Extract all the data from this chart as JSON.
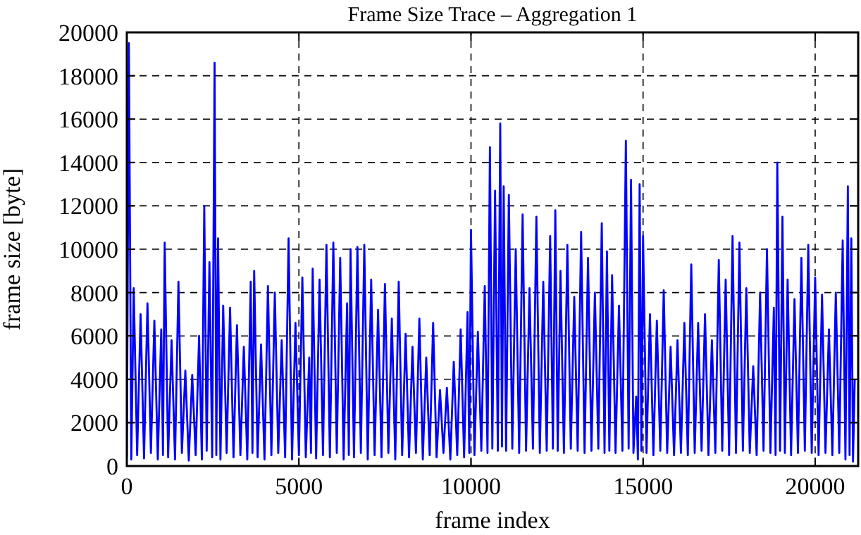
{
  "chart_data": {
    "type": "line",
    "title": "Frame Size Trace – Aggregation 1",
    "xlabel": "frame index",
    "ylabel": "frame size [byte]",
    "xlim": [
      0,
      21250
    ],
    "xticks": [
      0,
      5000,
      10000,
      15000,
      20000
    ],
    "ylim": [
      0,
      20000
    ],
    "yticks": [
      0,
      2000,
      4000,
      6000,
      8000,
      10000,
      12000,
      14000,
      16000,
      18000,
      20000
    ],
    "grid": true,
    "x": [
      0,
      60,
      130,
      200,
      300,
      400,
      500,
      600,
      700,
      800,
      900,
      1000,
      1050,
      1100,
      1200,
      1300,
      1400,
      1500,
      1600,
      1700,
      1800,
      1900,
      2000,
      2100,
      2180,
      2250,
      2320,
      2400,
      2480,
      2550,
      2600,
      2650,
      2720,
      2800,
      2900,
      3000,
      3100,
      3200,
      3300,
      3400,
      3500,
      3600,
      3650,
      3700,
      3800,
      3900,
      4000,
      4100,
      4200,
      4300,
      4400,
      4500,
      4600,
      4700,
      4800,
      4900,
      5000,
      5100,
      5200,
      5300,
      5350,
      5400,
      5500,
      5600,
      5700,
      5800,
      5900,
      6000,
      6100,
      6200,
      6300,
      6400,
      6450,
      6500,
      6600,
      6700,
      6800,
      6900,
      7000,
      7100,
      7200,
      7300,
      7400,
      7500,
      7600,
      7700,
      7800,
      7900,
      8000,
      8100,
      8200,
      8300,
      8400,
      8500,
      8600,
      8700,
      8800,
      8900,
      9000,
      9100,
      9200,
      9300,
      9400,
      9500,
      9600,
      9700,
      9800,
      9900,
      9950,
      10000,
      10100,
      10200,
      10300,
      10400,
      10480,
      10550,
      10620,
      10700,
      10780,
      10850,
      10900,
      10950,
      11020,
      11100,
      11200,
      11300,
      11400,
      11500,
      11600,
      11700,
      11800,
      11900,
      12000,
      12100,
      12200,
      12300,
      12380,
      12450,
      12520,
      12600,
      12700,
      12800,
      12900,
      13000,
      13100,
      13200,
      13300,
      13400,
      13500,
      13600,
      13700,
      13800,
      13880,
      13950,
      14020,
      14100,
      14200,
      14300,
      14400,
      14500,
      14580,
      14650,
      14720,
      14800,
      14850,
      14900,
      14950,
      15000,
      15100,
      15200,
      15300,
      15400,
      15500,
      15600,
      15700,
      15800,
      15900,
      16000,
      16100,
      16200,
      16300,
      16400,
      16500,
      16600,
      16700,
      16800,
      16900,
      17000,
      17100,
      17200,
      17300,
      17400,
      17500,
      17600,
      17700,
      17800,
      17900,
      18000,
      18100,
      18200,
      18300,
      18400,
      18500,
      18600,
      18700,
      18800,
      18850,
      18900,
      18980,
      19050,
      19120,
      19200,
      19300,
      19400,
      19500,
      19600,
      19700,
      19800,
      19900,
      20000,
      20100,
      20200,
      20300,
      20400,
      20500,
      20600,
      20700,
      20800,
      20880,
      20950,
      21000,
      21050,
      21100,
      21150
    ],
    "series": [
      {
        "color": "#0000ff",
        "values": [
          400,
          19500,
          300,
          8200,
          500,
          7000,
          350,
          7500,
          600,
          6700,
          300,
          6300,
          500,
          10300,
          400,
          5800,
          300,
          8500,
          600,
          4400,
          250,
          4200,
          500,
          6000,
          300,
          12000,
          700,
          9400,
          400,
          18600,
          500,
          10500,
          300,
          7400,
          600,
          7300,
          400,
          6500,
          500,
          5500,
          300,
          8500,
          600,
          9000,
          400,
          5600,
          300,
          8300,
          500,
          8000,
          600,
          5800,
          400,
          10500,
          300,
          6600,
          500,
          8700,
          400,
          5000,
          600,
          9100,
          350,
          8600,
          500,
          10200,
          400,
          10300,
          600,
          9600,
          300,
          7500,
          500,
          10000,
          400,
          10100,
          600,
          10200,
          300,
          8600,
          500,
          7200,
          400,
          8400,
          600,
          6800,
          300,
          8500,
          500,
          6100,
          400,
          5500,
          600,
          6800,
          300,
          5000,
          500,
          6600,
          400,
          3500,
          600,
          3600,
          300,
          4800,
          500,
          6300,
          400,
          7100,
          600,
          10900,
          500,
          6200,
          700,
          8300,
          600,
          14700,
          800,
          12700,
          700,
          15800,
          900,
          12900,
          700,
          12500,
          800,
          10000,
          600,
          11600,
          700,
          8200,
          800,
          11500,
          600,
          8500,
          700,
          10600,
          800,
          11800,
          700,
          9000,
          600,
          10200,
          800,
          7800,
          700,
          10800,
          600,
          9600,
          700,
          8000,
          800,
          11200,
          600,
          9900,
          700,
          8800,
          600,
          7400,
          700,
          15000,
          800,
          13200,
          600,
          3200,
          300,
          13000,
          700,
          10600,
          600,
          7000,
          500,
          6700,
          700,
          8100,
          600,
          5500,
          500,
          5800,
          600,
          6600,
          500,
          9300,
          600,
          6600,
          700,
          7000,
          500,
          5800,
          600,
          9500,
          700,
          8600,
          500,
          10600,
          600,
          10300,
          700,
          8200,
          600,
          4600,
          500,
          8000,
          700,
          10000,
          600,
          7300,
          500,
          14000,
          700,
          11500,
          600,
          8600,
          500,
          7700,
          600,
          9600,
          700,
          10200,
          600,
          8700,
          500,
          7900,
          600,
          6300,
          500,
          8000,
          600,
          10400,
          300,
          12900,
          500,
          10500,
          200,
          4000
        ]
      }
    ]
  }
}
